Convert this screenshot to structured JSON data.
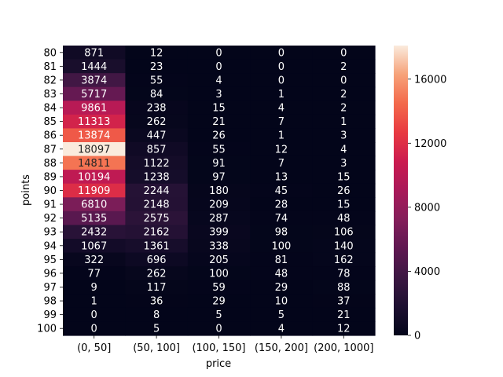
{
  "chart_data": {
    "type": "heatmap",
    "title": "",
    "xlabel": "price",
    "ylabel": "points",
    "x_categories": [
      "(0, 50]",
      "(50, 100]",
      "(100, 150]",
      "(150, 200]",
      "(200, 1000]"
    ],
    "y_categories": [
      "80",
      "81",
      "82",
      "83",
      "84",
      "85",
      "86",
      "87",
      "88",
      "89",
      "90",
      "91",
      "92",
      "93",
      "94",
      "95",
      "96",
      "97",
      "98",
      "99",
      "100"
    ],
    "values": [
      [
        871,
        12,
        0,
        0,
        0
      ],
      [
        1444,
        23,
        0,
        0,
        2
      ],
      [
        3874,
        55,
        4,
        0,
        0
      ],
      [
        5717,
        84,
        3,
        1,
        2
      ],
      [
        9861,
        238,
        15,
        4,
        2
      ],
      [
        11313,
        262,
        21,
        7,
        1
      ],
      [
        13874,
        447,
        26,
        1,
        3
      ],
      [
        18097,
        857,
        55,
        12,
        4
      ],
      [
        14811,
        1122,
        91,
        7,
        3
      ],
      [
        10194,
        1238,
        97,
        13,
        15
      ],
      [
        11909,
        2244,
        180,
        45,
        26
      ],
      [
        6810,
        2148,
        209,
        28,
        15
      ],
      [
        5135,
        2575,
        287,
        74,
        48
      ],
      [
        2432,
        2162,
        399,
        98,
        106
      ],
      [
        1067,
        1361,
        338,
        100,
        140
      ],
      [
        322,
        696,
        205,
        81,
        162
      ],
      [
        77,
        262,
        100,
        48,
        78
      ],
      [
        9,
        117,
        59,
        29,
        88
      ],
      [
        1,
        36,
        29,
        10,
        37
      ],
      [
        0,
        8,
        5,
        5,
        21
      ],
      [
        0,
        5,
        0,
        4,
        12
      ]
    ],
    "colorbar": {
      "vmin": 0,
      "vmax": 18097,
      "ticks": [
        0,
        4000,
        8000,
        12000,
        16000
      ],
      "colormap": "rocket"
    }
  }
}
